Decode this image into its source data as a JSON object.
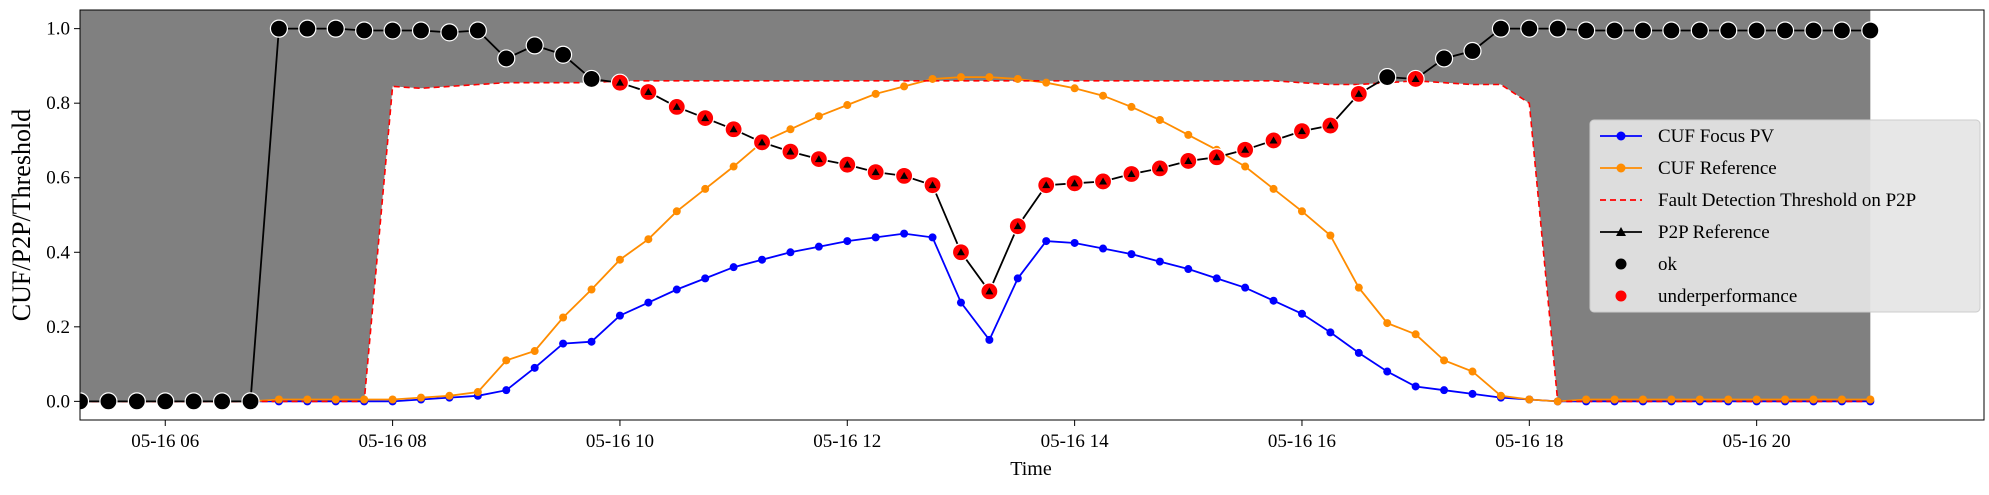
{
  "chart_data": {
    "type": "line",
    "xlabel": "Time",
    "ylabel": "CUF/P2P/Threshold",
    "x_tick_labels": [
      "05-16 06",
      "05-16 08",
      "05-16 10",
      "05-16 12",
      "05-16 14",
      "05-16 16",
      "05-16 18",
      "05-16 20"
    ],
    "x_tick_hours": [
      6,
      8,
      10,
      12,
      14,
      16,
      18,
      20
    ],
    "y_tick_labels": [
      "0.0",
      "0.2",
      "0.4",
      "0.6",
      "0.8",
      "1.0"
    ],
    "y_ticks": [
      0,
      0.2,
      0.4,
      0.6,
      0.8,
      1.0
    ],
    "xlim_hours": [
      5.25,
      22.0
    ],
    "ylim": [
      -0.05,
      1.05
    ],
    "grid": false,
    "legend_position": "center-right",
    "time_hours": [
      5.0,
      5.25,
      5.5,
      5.75,
      6.0,
      6.25,
      6.5,
      6.75,
      7.0,
      7.25,
      7.5,
      7.75,
      8.0,
      8.25,
      8.5,
      8.75,
      9.0,
      9.25,
      9.5,
      9.75,
      10.0,
      10.25,
      10.5,
      10.75,
      11.0,
      11.25,
      11.5,
      11.75,
      12.0,
      12.25,
      12.5,
      12.75,
      13.0,
      13.25,
      13.5,
      13.75,
      14.0,
      14.25,
      14.5,
      14.75,
      15.0,
      15.25,
      15.5,
      15.75,
      16.0,
      16.25,
      16.5,
      16.75,
      17.0,
      17.25,
      17.5,
      17.75,
      18.0,
      18.25,
      18.5,
      18.75,
      19.0,
      19.25,
      19.5,
      19.75,
      20.0,
      20.25,
      20.5,
      20.75,
      21.0
    ],
    "shaded_regions": [
      {
        "from_hour": 5.0,
        "to_hour": 7.75,
        "color": "#808080",
        "ymax": 1.05
      },
      {
        "from_hour": 7.75,
        "to_hour": 18.25,
        "color": "#808080",
        "ymin_follows": "Fault Detection Threshold on P2P",
        "ymax": 1.05
      },
      {
        "from_hour": 18.25,
        "to_hour": 21.0,
        "color": "#808080",
        "ymax": 1.05
      }
    ],
    "series": [
      {
        "name": "CUF Focus PV",
        "color": "#0000ff",
        "style": "line-circle",
        "values": [
          0,
          0,
          0,
          0,
          0,
          0,
          0,
          0,
          0,
          0,
          0,
          0,
          0,
          0.005,
          0.01,
          0.015,
          0.03,
          0.09,
          0.155,
          0.16,
          0.23,
          0.265,
          0.3,
          0.33,
          0.36,
          0.38,
          0.4,
          0.415,
          0.43,
          0.44,
          0.45,
          0.44,
          0.265,
          0.165,
          0.33,
          0.43,
          0.425,
          0.41,
          0.395,
          0.375,
          0.355,
          0.33,
          0.305,
          0.27,
          0.235,
          0.185,
          0.13,
          0.08,
          0.04,
          0.03,
          0.02,
          0.01,
          0.005,
          0,
          0,
          0,
          0,
          0,
          0,
          0,
          0,
          0,
          0,
          0,
          0
        ]
      },
      {
        "name": "CUF Reference",
        "color": "#ff8c00",
        "style": "line-circle",
        "values": [
          0,
          0,
          0,
          0,
          0,
          0,
          0,
          0,
          0.005,
          0.005,
          0.005,
          0.005,
          0.005,
          0.01,
          0.015,
          0.025,
          0.11,
          0.135,
          0.225,
          0.3,
          0.38,
          0.435,
          0.51,
          0.57,
          0.63,
          0.695,
          0.73,
          0.765,
          0.795,
          0.825,
          0.845,
          0.865,
          0.87,
          0.87,
          0.865,
          0.855,
          0.84,
          0.82,
          0.79,
          0.755,
          0.715,
          0.675,
          0.63,
          0.57,
          0.51,
          0.445,
          0.305,
          0.21,
          0.18,
          0.11,
          0.08,
          0.015,
          0.005,
          0,
          0.005,
          0.005,
          0.005,
          0.005,
          0.005,
          0.005,
          0.005,
          0.005,
          0.005,
          0.005,
          0.005
        ]
      },
      {
        "name": "Fault Detection Threshold on P2P",
        "color": "#ff0000",
        "style": "dashed",
        "values": [
          0,
          0,
          0,
          0,
          0,
          0,
          0,
          0,
          0,
          0,
          0,
          0,
          0.845,
          0.84,
          0.845,
          0.85,
          0.855,
          0.855,
          0.855,
          0.855,
          0.86,
          0.86,
          0.86,
          0.86,
          0.86,
          0.86,
          0.86,
          0.86,
          0.86,
          0.86,
          0.86,
          0.86,
          0.86,
          0.86,
          0.86,
          0.86,
          0.86,
          0.86,
          0.86,
          0.86,
          0.86,
          0.86,
          0.86,
          0.86,
          0.855,
          0.85,
          0.85,
          0.855,
          0.86,
          0.855,
          0.85,
          0.85,
          0.8,
          0,
          0,
          0,
          0,
          0,
          0,
          0,
          0,
          0,
          0,
          0,
          0
        ]
      },
      {
        "name": " P2P Reference",
        "color": "#000000",
        "style": "line-triangle",
        "values": [
          0,
          0,
          0,
          0,
          0,
          0,
          0,
          0,
          1.0,
          1.0,
          1.0,
          0.995,
          0.995,
          0.995,
          0.99,
          0.995,
          0.92,
          0.955,
          0.93,
          0.865,
          0.855,
          0.83,
          0.79,
          0.76,
          0.73,
          0.695,
          0.67,
          0.65,
          0.635,
          0.615,
          0.605,
          0.58,
          0.4,
          0.295,
          0.47,
          0.58,
          0.585,
          0.59,
          0.61,
          0.625,
          0.645,
          0.655,
          0.675,
          0.7,
          0.725,
          0.74,
          0.825,
          0.87,
          0.865,
          0.92,
          0.94,
          1.0,
          1.0,
          1.0,
          0.995,
          0.995,
          0.995,
          0.995,
          0.995,
          0.995,
          0.995,
          0.995,
          0.995,
          0.995,
          0.995
        ]
      }
    ],
    "status_markers": [
      {
        "name": "ok",
        "color": "#000000"
      },
      {
        "name": "underperformance",
        "color": "#ff0000"
      }
    ],
    "status_per_point": [
      "ok",
      "ok",
      "ok",
      "ok",
      "ok",
      "ok",
      "ok",
      "ok",
      "ok",
      "ok",
      "ok",
      "ok",
      "ok",
      "ok",
      "ok",
      "ok",
      "ok",
      "ok",
      "ok",
      "ok",
      "underperformance",
      "underperformance",
      "underperformance",
      "underperformance",
      "underperformance",
      "underperformance",
      "underperformance",
      "underperformance",
      "underperformance",
      "underperformance",
      "underperformance",
      "underperformance",
      "underperformance",
      "underperformance",
      "underperformance",
      "underperformance",
      "underperformance",
      "underperformance",
      "underperformance",
      "underperformance",
      "underperformance",
      "underperformance",
      "underperformance",
      "underperformance",
      "underperformance",
      "underperformance",
      "underperformance",
      "ok",
      "underperformance",
      "ok",
      "ok",
      "ok",
      "ok",
      "ok",
      "ok",
      "ok",
      "ok",
      "ok",
      "ok",
      "ok",
      "ok",
      "ok",
      "ok",
      "ok",
      "ok"
    ]
  },
  "legend": {
    "items": [
      {
        "label": "CUF Focus PV",
        "kind": "line-circle",
        "color": "#0000ff"
      },
      {
        "label": "CUF Reference",
        "kind": "line-circle",
        "color": "#ff8c00"
      },
      {
        "label": "Fault Detection Threshold on P2P",
        "kind": "dashed",
        "color": "#ff0000"
      },
      {
        "label": " P2P Reference",
        "kind": "line-triangle",
        "color": "#000000"
      },
      {
        "label": "ok",
        "kind": "dot",
        "color": "#000000"
      },
      {
        "label": "underperformance",
        "kind": "dot",
        "color": "#ff0000"
      }
    ]
  }
}
